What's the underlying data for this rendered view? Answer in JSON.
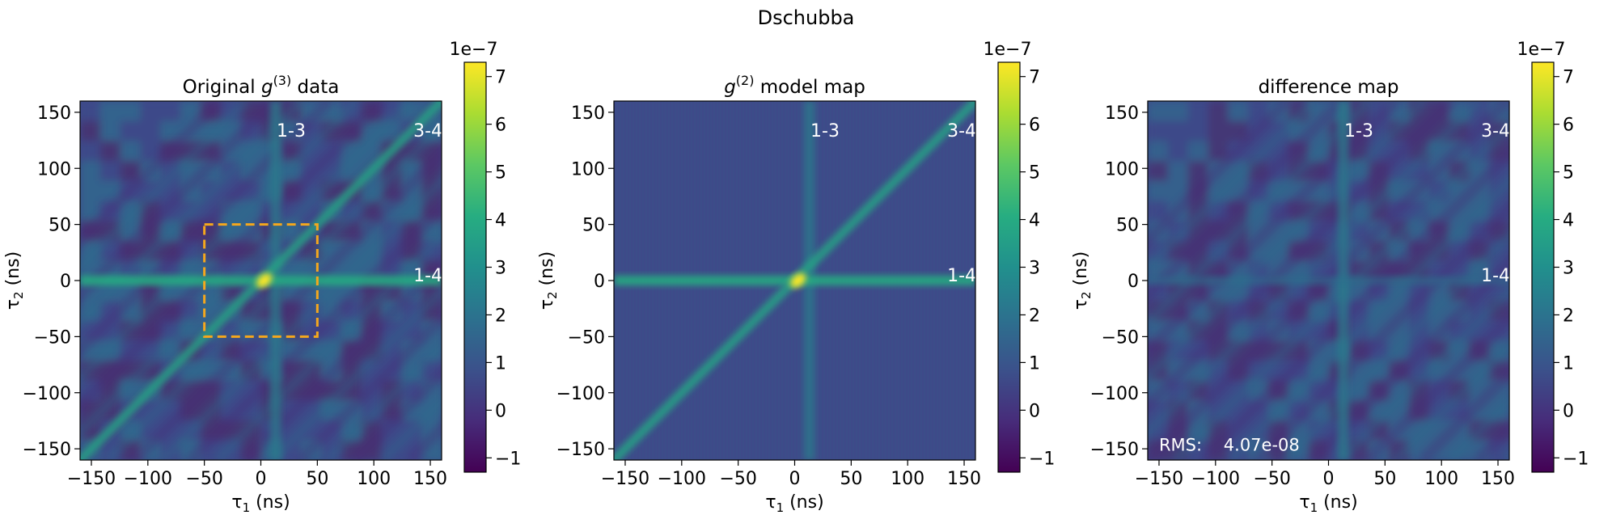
{
  "figure": {
    "suptitle": "Dschubba"
  },
  "chart_data": [
    {
      "type": "heatmap",
      "title": "Original g(3) data",
      "title_parts": [
        "Original ",
        "g",
        "(3)",
        " data"
      ],
      "xlabel": "τ1 (ns)",
      "xlabel_parts": [
        "τ",
        "1",
        " (ns)"
      ],
      "ylabel": "τ2 (ns)",
      "ylabel_parts": [
        "τ",
        "2",
        " (ns)"
      ],
      "xlim": [
        -160,
        160
      ],
      "ylim": [
        -160,
        160
      ],
      "xticks": [
        -150,
        -100,
        -50,
        0,
        50,
        100,
        150
      ],
      "yticks": [
        -150,
        -100,
        -50,
        0,
        50,
        100,
        150
      ],
      "tick_labels": [
        "−150",
        "−100",
        "−50",
        "0",
        "50",
        "100",
        "150"
      ],
      "features": {
        "vertical_band_x": 0,
        "horizontal_band_y": 0,
        "diagonal": true,
        "peak": [
          0,
          0
        ],
        "noise": "high"
      },
      "annotations": [
        {
          "text": "1-3",
          "x": 14,
          "y": 134
        },
        {
          "text": "3-4",
          "x": 135,
          "y": 134
        },
        {
          "text": "1-4",
          "x": 135,
          "y": 5
        }
      ],
      "highlight_box": {
        "x": [
          -50,
          50
        ],
        "y": [
          -50,
          50
        ],
        "color": "#f4a71d",
        "style": "dashed"
      },
      "colorbar": {
        "scale_label": "1e−7",
        "range": [
          -1.3,
          7.3
        ],
        "ticks": [
          -1,
          0,
          1,
          2,
          3,
          4,
          5,
          6,
          7
        ],
        "tick_labels": [
          "−1",
          "0",
          "1",
          "2",
          "3",
          "4",
          "5",
          "6",
          "7"
        ],
        "colormap": "viridis"
      }
    },
    {
      "type": "heatmap",
      "title": "g(2) model map",
      "title_parts": [
        "",
        "g",
        "(2)",
        " model map"
      ],
      "xlabel": "τ1 (ns)",
      "xlabel_parts": [
        "τ",
        "1",
        " (ns)"
      ],
      "ylabel": "τ2 (ns)",
      "ylabel_parts": [
        "τ",
        "2",
        " (ns)"
      ],
      "xlim": [
        -160,
        160
      ],
      "ylim": [
        -160,
        160
      ],
      "xticks": [
        -150,
        -100,
        -50,
        0,
        50,
        100,
        150
      ],
      "yticks": [
        -150,
        -100,
        -50,
        0,
        50,
        100,
        150
      ],
      "tick_labels": [
        "−150",
        "−100",
        "−50",
        "0",
        "50",
        "100",
        "150"
      ],
      "features": {
        "vertical_band_x": 0,
        "horizontal_band_y": 0,
        "diagonal": true,
        "peak": [
          0,
          0
        ],
        "noise": "none"
      },
      "annotations": [
        {
          "text": "1-3",
          "x": 14,
          "y": 134
        },
        {
          "text": "3-4",
          "x": 135,
          "y": 134
        },
        {
          "text": "1-4",
          "x": 135,
          "y": 5
        }
      ],
      "colorbar": {
        "scale_label": "1e−7",
        "range": [
          -1.3,
          7.3
        ],
        "ticks": [
          -1,
          0,
          1,
          2,
          3,
          4,
          5,
          6,
          7
        ],
        "tick_labels": [
          "−1",
          "0",
          "1",
          "2",
          "3",
          "4",
          "5",
          "6",
          "7"
        ],
        "colormap": "viridis"
      }
    },
    {
      "type": "heatmap",
      "title": "difference map",
      "title_parts": [
        "difference map",
        "",
        "",
        ""
      ],
      "xlabel": "τ1 (ns)",
      "xlabel_parts": [
        "τ",
        "1",
        " (ns)"
      ],
      "ylabel": "τ2 (ns)",
      "ylabel_parts": [
        "τ",
        "2",
        " (ns)"
      ],
      "xlim": [
        -160,
        160
      ],
      "ylim": [
        -160,
        160
      ],
      "xticks": [
        -150,
        -100,
        -50,
        0,
        50,
        100,
        150
      ],
      "yticks": [
        -150,
        -100,
        -50,
        0,
        50,
        100,
        150
      ],
      "tick_labels": [
        "−150",
        "−100",
        "−50",
        "0",
        "50",
        "100",
        "150"
      ],
      "features": {
        "vertical_band_x": 0,
        "horizontal_band_y": 0,
        "diagonal": false,
        "peak": null,
        "noise": "residual"
      },
      "annotations": [
        {
          "text": "1-3",
          "x": 14,
          "y": 134
        },
        {
          "text": "3-4",
          "x": 135,
          "y": 134
        },
        {
          "text": "1-4",
          "x": 135,
          "y": 5
        },
        {
          "text": "RMS:    4.07e-08",
          "x": -150,
          "y": -146
        }
      ],
      "colorbar": {
        "scale_label": "1e−7",
        "range": [
          -1.3,
          7.3
        ],
        "ticks": [
          -1,
          0,
          1,
          2,
          3,
          4,
          5,
          6,
          7
        ],
        "tick_labels": [
          "−1",
          "0",
          "1",
          "2",
          "3",
          "4",
          "5",
          "6",
          "7"
        ],
        "colormap": "viridis"
      }
    }
  ]
}
